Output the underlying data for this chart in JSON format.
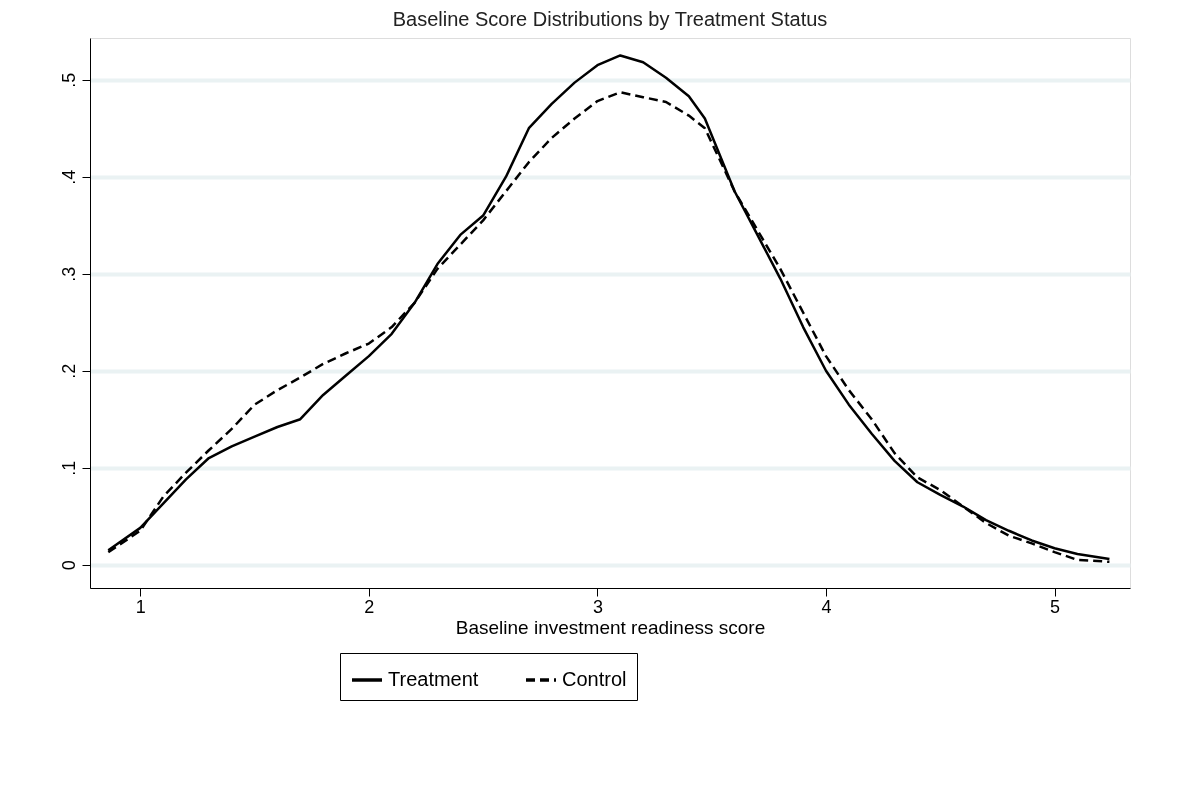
{
  "chart_data": {
    "type": "line",
    "title": "Baseline Score Distributions by Treatment Status",
    "xlabel": "Baseline investment readiness score",
    "x": [
      0.86,
      1.0,
      1.1,
      1.2,
      1.3,
      1.4,
      1.5,
      1.6,
      1.7,
      1.8,
      1.9,
      2.0,
      2.1,
      2.2,
      2.3,
      2.4,
      2.5,
      2.6,
      2.7,
      2.8,
      2.9,
      3.0,
      3.1,
      3.2,
      3.3,
      3.4,
      3.47,
      3.6,
      3.7,
      3.8,
      3.9,
      4.0,
      4.1,
      4.2,
      4.3,
      4.4,
      4.5,
      4.6,
      4.7,
      4.8,
      4.9,
      5.0,
      5.1,
      5.24
    ],
    "series": [
      {
        "name": "Treatment",
        "color": "#000000",
        "line_style": "solid",
        "values": [
          0.015,
          0.038,
          0.063,
          0.088,
          0.11,
          0.122,
          0.132,
          0.142,
          0.15,
          0.175,
          0.195,
          0.215,
          0.238,
          0.27,
          0.31,
          0.34,
          0.36,
          0.4,
          0.45,
          0.475,
          0.497,
          0.515,
          0.525,
          0.518,
          0.502,
          0.483,
          0.46,
          0.385,
          0.34,
          0.295,
          0.245,
          0.2,
          0.165,
          0.135,
          0.107,
          0.085,
          0.072,
          0.06,
          0.046,
          0.035,
          0.025,
          0.017,
          0.011,
          0.006
        ]
      },
      {
        "name": "Control",
        "color": "#000000",
        "line_style": "dashed",
        "values": [
          0.013,
          0.035,
          0.07,
          0.095,
          0.118,
          0.14,
          0.165,
          0.18,
          0.193,
          0.207,
          0.218,
          0.228,
          0.245,
          0.27,
          0.305,
          0.33,
          0.355,
          0.385,
          0.415,
          0.44,
          0.46,
          0.478,
          0.487,
          0.482,
          0.477,
          0.463,
          0.45,
          0.385,
          0.345,
          0.305,
          0.26,
          0.215,
          0.18,
          0.15,
          0.115,
          0.09,
          0.077,
          0.06,
          0.043,
          0.03,
          0.022,
          0.013,
          0.005,
          0.003
        ]
      }
    ],
    "xlim": [
      0.78,
      5.33
    ],
    "xticks": [
      1,
      2,
      3,
      4,
      5
    ],
    "ylim": [
      -0.024,
      0.543
    ],
    "yticks": [
      0,
      {
        "value": 0.1,
        "label": ".1"
      },
      {
        "value": 0.2,
        "label": ".2"
      },
      {
        "value": 0.3,
        "label": ".3"
      },
      {
        "value": 0.4,
        "label": ".4"
      },
      {
        "value": 0.5,
        "label": ".5"
      }
    ],
    "grid": "y",
    "legend": "bottom",
    "marker": "none"
  }
}
